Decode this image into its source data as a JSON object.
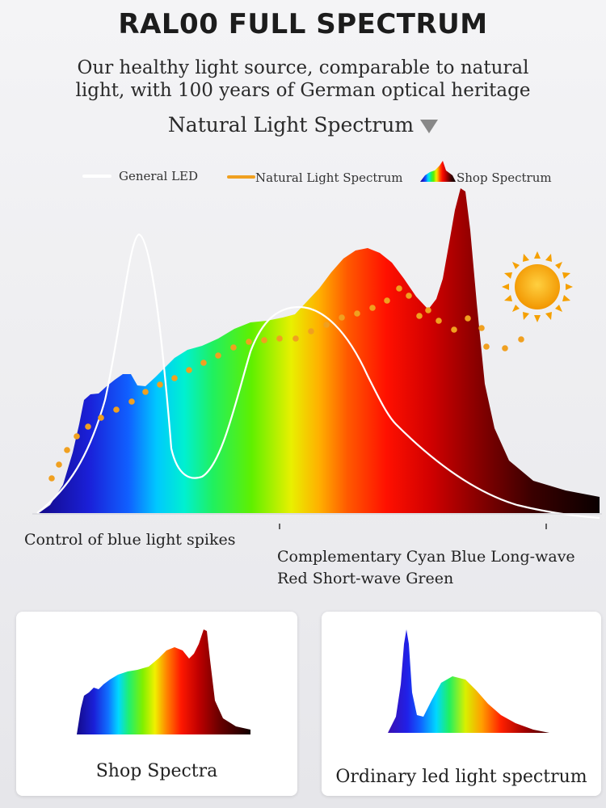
{
  "header": {
    "title": "RAL00 FULL SPECTRUM",
    "subtitle_line1": "Our healthy light source, comparable to natural",
    "subtitle_line2": "light, with 100 years of German optical heritage",
    "section_title": "Natural Light Spectrum"
  },
  "chart_data": {
    "type": "area",
    "title": "",
    "xlabel": "",
    "ylabel": "",
    "legend": {
      "placement": "top",
      "entries": [
        "General LED",
        "Natural Light Spectrum",
        "Shop Spectrum"
      ]
    },
    "series": [
      {
        "name": "Shop Spectrum",
        "style": "rainbow-filled-area"
      },
      {
        "name": "General LED",
        "style": "white-line",
        "color": "#ffffff"
      },
      {
        "name": "Natural Light Spectrum",
        "style": "orange-dots",
        "color": "#f0a020"
      }
    ],
    "annotations": [
      "Control of blue light spikes",
      "Complementary Cyan Blue Long-wave",
      "Red Short-wave Green"
    ]
  },
  "annotations": {
    "blue_spikes": "Control of blue light spikes",
    "complementary_line1": "Complementary Cyan Blue Long-wave",
    "complementary_line2": "Red Short-wave Green"
  },
  "cards": [
    {
      "label": "Shop Spectra"
    },
    {
      "label": "Ordinary led light spectrum"
    }
  ],
  "colors": {
    "blue": "#1a10b0",
    "cyan": "#00e8f0",
    "green": "#20e020",
    "yellow": "#f8f000",
    "orange": "#ff6a00",
    "red": "#ff0000",
    "dark_red": "#7a0000",
    "natural_dots": "#f0a020",
    "sun": "#f6a800"
  }
}
